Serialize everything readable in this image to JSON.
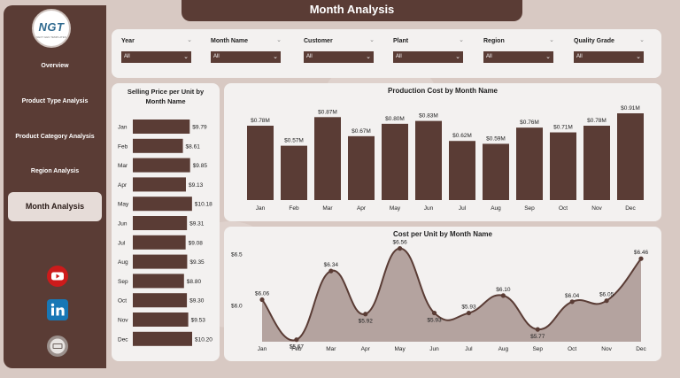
{
  "app": {
    "title": "Month Analysis",
    "logo_text": "NGT",
    "logo_subtext": "NEXT GEN TEMPLATES"
  },
  "nav": {
    "items": [
      {
        "label": "Overview",
        "active": false
      },
      {
        "label": "Product Type Analysis",
        "active": false
      },
      {
        "label": "Product Category Analysis",
        "active": false
      },
      {
        "label": "Region Analysis",
        "active": false
      },
      {
        "label": "Month Analysis",
        "active": true
      }
    ],
    "social_icons": [
      "youtube-icon",
      "linkedin-icon",
      "website-icon"
    ]
  },
  "filters": [
    {
      "label": "Year",
      "value": "All"
    },
    {
      "label": "Month Name",
      "value": "All"
    },
    {
      "label": "Customer",
      "value": "All"
    },
    {
      "label": "Plant",
      "value": "All"
    },
    {
      "label": "Region",
      "value": "All"
    },
    {
      "label": "Quality Grade",
      "value": "All"
    }
  ],
  "colors": {
    "bar": "#5a3c35",
    "accent": "#5a3c35",
    "area": "#a89591",
    "background": "#d8c9c3",
    "panel": "#f3f1f0"
  },
  "chart_data": [
    {
      "type": "bar",
      "orientation": "horizontal",
      "title": "Selling Price per Unit by Month Name",
      "categories": [
        "Jan",
        "Feb",
        "Mar",
        "Apr",
        "May",
        "Jun",
        "Jul",
        "Aug",
        "Sep",
        "Oct",
        "Nov",
        "Dec"
      ],
      "values": [
        9.79,
        8.61,
        9.85,
        9.13,
        10.18,
        9.31,
        9.08,
        9.35,
        8.8,
        9.3,
        9.53,
        10.2
      ],
      "data_labels": [
        "$9.79",
        "$8.61",
        "$9.85",
        "$9.13",
        "$10.18",
        "$9.31",
        "$9.08",
        "$9.35",
        "$8.80",
        "$9.30",
        "$9.53",
        "$10.20"
      ]
    },
    {
      "type": "bar",
      "title": "Production Cost by Month Name",
      "categories": [
        "Jan",
        "Feb",
        "Mar",
        "Apr",
        "May",
        "Jun",
        "Jul",
        "Aug",
        "Sep",
        "Oct",
        "Nov",
        "Dec"
      ],
      "values": [
        0.78,
        0.57,
        0.87,
        0.67,
        0.8,
        0.83,
        0.62,
        0.59,
        0.76,
        0.71,
        0.78,
        0.91
      ],
      "unit": "M",
      "data_labels": [
        "$0.78M",
        "$0.57M",
        "$0.87M",
        "$0.67M",
        "$0.80M",
        "$0.83M",
        "$0.62M",
        "$0.59M",
        "$0.76M",
        "$0.71M",
        "$0.78M",
        "$0.91M"
      ]
    },
    {
      "type": "area",
      "title": "Cost per Unit by Month Name",
      "categories": [
        "Jan",
        "Feb",
        "Mar",
        "Apr",
        "May",
        "Jun",
        "Jul",
        "Aug",
        "Sep",
        "Oct",
        "Nov",
        "Dec"
      ],
      "values": [
        6.06,
        5.67,
        6.34,
        5.92,
        6.56,
        5.93,
        5.93,
        6.1,
        5.77,
        6.04,
        6.05,
        6.46
      ],
      "data_labels": [
        "$6.06",
        "$5.67",
        "$6.34",
        "$5.92",
        "$6.56",
        "$5.93",
        "$5.93",
        "$6.10",
        "$5.77",
        "$6.04",
        "$6.05",
        "$6.46"
      ],
      "y_ticks": [
        "$6.5",
        "$6.0"
      ],
      "ylim": [
        5.65,
        6.6
      ],
      "smooth": true
    }
  ]
}
